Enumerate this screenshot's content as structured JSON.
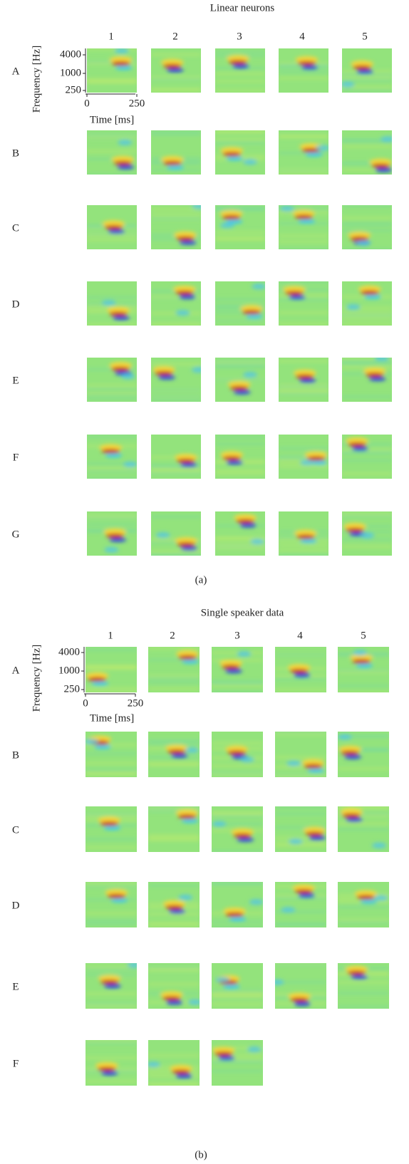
{
  "panels": [
    {
      "title": "Linear neurons",
      "columns": [
        "1",
        "2",
        "3",
        "4",
        "5"
      ],
      "rows": [
        "A",
        "B",
        "C",
        "D",
        "E",
        "F",
        "G"
      ],
      "y_axis_label": "Frequency [Hz]",
      "y_ticks": [
        "4000",
        "1000",
        "250"
      ],
      "x_axis_label": "Time [ms]",
      "x_ticks": [
        "0",
        "250"
      ],
      "caption": "(a)"
    },
    {
      "title": "Single speaker data",
      "columns": [
        "1",
        "2",
        "3",
        "4",
        "5"
      ],
      "rows": [
        "A",
        "B",
        "C",
        "D",
        "E",
        "F"
      ],
      "y_axis_label": "Frequency [Hz]",
      "y_ticks": [
        "4000",
        "1000",
        "250"
      ],
      "x_axis_label": "Time [ms]",
      "x_ticks": [
        "0",
        "250"
      ],
      "caption": "(b)"
    }
  ]
}
